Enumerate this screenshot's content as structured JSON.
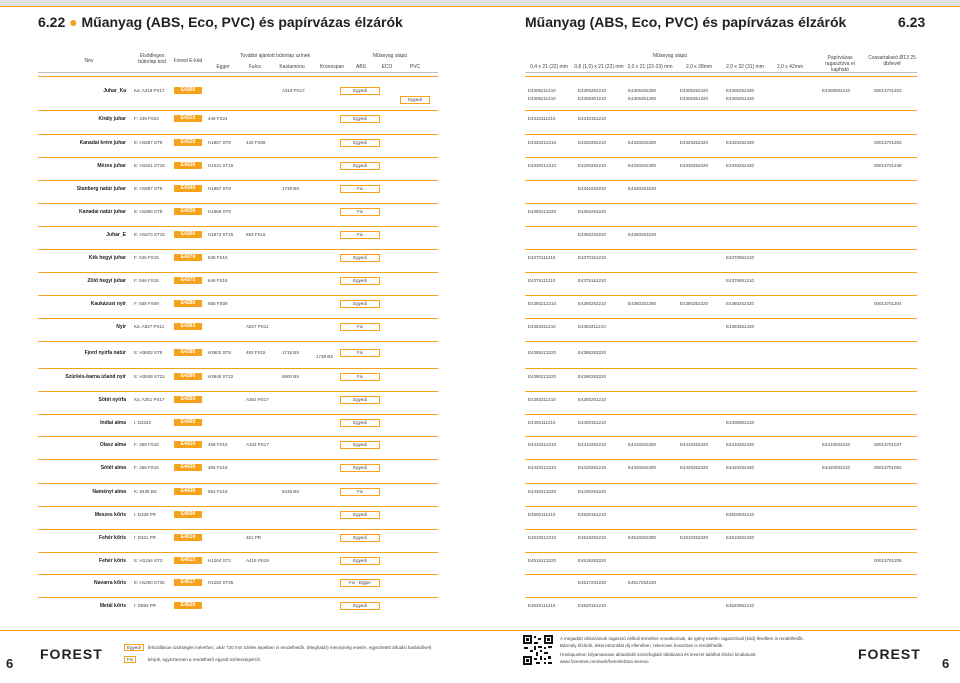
{
  "header": {
    "title_left_num": "6.22",
    "title_left": "Műanyag (ABS, Eco, PVC) és papírvázas élzárók",
    "title_right": "Műanyag (ABS, Eco, PVC) és papírvázas élzárók",
    "title_right_num": "6.23"
  },
  "columns_left": {
    "nev": "Név",
    "elsodleges": "Elsődleges bútorlap kód",
    "forest": "Forest E-kód",
    "tovabbi": "További ajánlott bútorlap színek",
    "egger": "Egger",
    "falco": "Falco",
    "kastamonu": "Kastamonu",
    "kronospan": "Kronospan",
    "muanyag": "Műanyag alapú",
    "abs": "ABS",
    "eco": "ECO",
    "pvc": "PVC"
  },
  "columns_right": {
    "muanyag": "Műanyag alapú",
    "c1": "0,4 x 21 (22) mm",
    "c2": "0,8 (1,0) x 21 (22) mm",
    "c3": "2,0 x 21 (22-23) mm",
    "c4": "2,0 x 28mm",
    "c5": "2,0 x 32 (31) mm",
    "c6": "2,0 x 42mm",
    "papir": "Papírvázas ragasztóva el kapható",
    "csavar": "Csavartakaró Ø13 25 db/levél"
  },
  "rows": [
    {
      "name": "Juhar_Ka",
      "code": "Ka: A319 PS17",
      "e": "E4305",
      "c1": "",
      "c2": "",
      "c3": "A319 PS17",
      "c4": "",
      "typ": "Egyedi",
      "typ2": "Egyedi",
      "n1": "E4305211210",
      "n2": "E4305252210",
      "n3": "E4305252280",
      "n4": "E4305252320",
      "n5": "E4305252420",
      "n1b": "E4305211210",
      "n2b": "E4305301210",
      "n3b": "E4305351280",
      "n4b": "E4305351320",
      "n5b": "E4305351420",
      "pap": "E4305932210",
      "csav": "000137012​02"
    },
    {
      "name": "Király juhar",
      "code": "F: 449 FS24",
      "e": "E4310",
      "c1": "449 FS24",
      "c2": "",
      "c3": "",
      "c4": "",
      "typ": "Egyedi",
      "n1": "E4310111210",
      "n2": "E4310151210",
      "n3": "",
      "n4": "",
      "n5": "",
      "pap": "",
      "csav": ""
    },
    {
      "name": "Kanadai krém juhar",
      "code": "E: H1867 ST9",
      "e": "E4320",
      "c1": "H1867 ST9",
      "c2": "440 FS08",
      "c3": "",
      "c4": "",
      "typ": "Egyedi",
      "n1": "E4320212210",
      "n2": "E4320252210",
      "n3": "E4320252280",
      "n4": "E4320252320",
      "n5": "E4320252420",
      "pap": "",
      "csav": "000137012​03"
    },
    {
      "name": "Mézes juhar",
      "code": "E: H1521 ST15",
      "e": "E4330",
      "c1": "H1521 ST15",
      "c2": "",
      "c3": "",
      "c4": "",
      "typ": "Egyedi",
      "n1": "E4330212210",
      "n2": "E4330252210",
      "n3": "E4330252280",
      "n4": "E4330252320",
      "n5": "E4330252420",
      "pap": "",
      "csav": "000137012​48"
    },
    {
      "name": "Stanberg natúr juhar",
      "code": "E: H1887 ST9",
      "e": "E4340",
      "c1": "H1887 ST9",
      "c2": "",
      "c3": "1738 BS",
      "c4": "",
      "typ": "Fix",
      "n1": "",
      "n2": "E4340233220",
      "n3": "E4340253220",
      "n4": "",
      "n5": "",
      "pap": "",
      "csav": ""
    },
    {
      "name": "Kanadai natúr juhar",
      "code": "E: H1869 ST9",
      "e": "E4350",
      "c1": "H1869 ST9",
      "c2": "",
      "c3": "",
      "c4": "",
      "typ": "Fix",
      "n1": "E4350213220",
      "n2": "E4350253220",
      "n3": "",
      "n4": "",
      "n5": "",
      "pap": "",
      "csav": ""
    },
    {
      "name": "Juhar_E",
      "code": "E: H1873 ST15",
      "e": "E4360",
      "c1": "H1873 ST15",
      "c2": "553 FS15",
      "c3": "",
      "c4": "",
      "typ": "Fix",
      "n1": "",
      "n2": "E4360233220",
      "n3": "E4360253220",
      "n4": "",
      "n5": "",
      "pap": "",
      "csav": ""
    },
    {
      "name": "Kék hegyi juhar",
      "code": "F: 645 FS15",
      "e": "E4370",
      "c1": "645 FS15",
      "c2": "",
      "c3": "",
      "c4": "",
      "typ": "Egyedi",
      "n1": "E4370111210",
      "n2": "E4370151210",
      "n3": "",
      "n4": "",
      "n5": "E4370951210",
      "pap": "",
      "csav": ""
    },
    {
      "name": "Zöld hegyi juhar",
      "code": "F: 646 FS15",
      "e": "E4375",
      "c1": "646 FS15",
      "c2": "",
      "c3": "",
      "c4": "",
      "typ": "Egyedi",
      "n1": "E4375111210",
      "n2": "E4375151210",
      "n3": "",
      "n4": "",
      "n5": "E4375951210",
      "pap": "",
      "csav": ""
    },
    {
      "name": "Kaukázusi nyír",
      "code": "F: 658 FS09",
      "e": "E4380",
      "c1": "658 FS09",
      "c2": "",
      "c3": "",
      "c4": "",
      "typ": "Egyedi",
      "n1": "E4380212210",
      "n2": "E4380252210",
      "n3": "E4380252280",
      "n4": "E4380252320",
      "n5": "E4380252420",
      "pap": "",
      "csav": "000137012​04"
    },
    {
      "name": "Nyír",
      "code": "Ka: A827 PS11",
      "e": "E4383",
      "c1": "",
      "c2": "A827 PS11",
      "c3": "",
      "c4": "",
      "typ": "Fix",
      "n1": "E4383311210",
      "n2": "E4383311210",
      "n3": "",
      "n4": "",
      "n5": "E4383351420",
      "pap": "",
      "csav": ""
    },
    {
      "name": "Fjord nyírfa natúr",
      "code": "E: H3602 ST9",
      "e": "E4385",
      "c1": "H3602 ST9",
      "c2": "483 FS15",
      "c3": "1715 BS",
      "c3b": "1738 BS",
      "c4": "",
      "typ": "Fix",
      "n1": "E4385213220",
      "n2": "E4385253220",
      "n3": "",
      "n4": "",
      "n5": "",
      "pap": "",
      "csav": ""
    },
    {
      "name": "Szürkés-barna izland nyír",
      "code": "E: H3848 ST22",
      "e": "E4390",
      "c1": "H3848 ST22",
      "c2": "",
      "c3": "8500 BS",
      "c4": "",
      "typ": "Fix",
      "n1": "E4390213220",
      "n2": "E4390253220",
      "n3": "",
      "n4": "",
      "n5": "",
      "pap": "",
      "csav": ""
    },
    {
      "name": "Sötét nyírfa",
      "code": "Ka: A351 PS17",
      "e": "E4393",
      "c1": "",
      "c2": "A351 PS17",
      "c3": "",
      "c4": "",
      "typ": "Egyedi",
      "n1": "E4393311210",
      "n2": "E4393201210",
      "n3": "",
      "n4": "",
      "n5": "",
      "pap": "",
      "csav": ""
    },
    {
      "name": "Indiai alma",
      "code": "I: D2342",
      "e": "E4400",
      "c1": "",
      "c2": "",
      "c3": "",
      "c4": "",
      "typ": "Egyedi",
      "n1": "E4400111210",
      "n2": "E4400151210",
      "n3": "",
      "n4": "",
      "n5": "E4400951210",
      "pap": "",
      "csav": ""
    },
    {
      "name": "Olasz alma",
      "code": "F: 468 FS15",
      "e": "E4410",
      "c1": "468 FS15",
      "c2": "A332 PS17",
      "c3": "",
      "c4": "",
      "typ": "Egyedi",
      "n1": "E4410212210",
      "n2": "E4410252210",
      "n3": "E4410252280",
      "n4": "E4410252320",
      "n5": "E4410252420",
      "pap": "E4410932210",
      "csav": "000137010​37"
    },
    {
      "name": "Sötét alma",
      "code": "F: 466 FS15",
      "e": "E4420",
      "c1": "466 FS15",
      "c2": "",
      "c3": "",
      "c4": "",
      "typ": "Egyedi",
      "n1": "E4420212210",
      "n2": "E4420252210",
      "n3": "E4420252280",
      "n4": "E4420252320",
      "n5": "E4420252420",
      "pap": "E4420932210",
      "csav": "000137010​52"
    },
    {
      "name": "Naményi alma",
      "code": "K: 8438 BS",
      "e": "E4430",
      "c1": "552 FS15",
      "c2": "",
      "c3": "8438 BS",
      "c4": "",
      "typ": "Fix",
      "n1": "E4430213220",
      "n2": "E4430253220",
      "n3": "",
      "n4": "",
      "n5": "",
      "pap": "",
      "csav": ""
    },
    {
      "name": "Meszes kőris",
      "code": "I: D339 PR",
      "e": "E4500",
      "c1": "",
      "c2": "",
      "c3": "",
      "c4": "",
      "typ": "Egyedi",
      "n1": "E4500111210",
      "n2": "E4500151210",
      "n3": "",
      "n4": "",
      "n5": "E4500932210",
      "pap": "",
      "csav": ""
    },
    {
      "name": "Fehér kőris",
      "code": "I: D321 PR",
      "e": "E4510",
      "c1": "",
      "c2": "321 PR",
      "c3": "",
      "c4": "",
      "typ": "Egyedi",
      "n1": "E4510212210",
      "n2": "E4510252210",
      "n3": "E4510252280",
      "n4": "E4510252320",
      "n5": "E4510252420",
      "pap": "",
      "csav": ""
    },
    {
      "name": "Fehér kőris",
      "code": "E: H1264 ST3",
      "e": "E4515",
      "c1": "H1264 ST3",
      "c2": "A415 PS19",
      "c3": "",
      "c4": "",
      "typ": "Egyedi",
      "n1": "E4515213220",
      "n2": "E4515253220",
      "n3": "",
      "n4": "",
      "n5": "",
      "pap": "",
      "csav": "000137012​05"
    },
    {
      "name": "Navarra kőris",
      "code": "E: H1250 ST36",
      "e": "E4517",
      "c1": "H1250 ST36",
      "c2": "",
      "c3": "",
      "c4": "",
      "typ": "Fix - Egger",
      "n1": "",
      "n2": "E4517234230",
      "n3": "E4517254230",
      "n4": "",
      "n5": "",
      "pap": "",
      "csav": ""
    },
    {
      "name": "Metál kőris",
      "code": "I: D894 PR",
      "e": "E4520",
      "c1": "",
      "c2": "",
      "c3": "",
      "c4": "",
      "typ": "Egyedi",
      "n1": "E4520111210",
      "n2": "E4520151210",
      "n3": "",
      "n4": "",
      "n5": "E4520951210",
      "pap": "",
      "csav": ""
    }
  ],
  "footer": {
    "logo": "FOREST",
    "legend1_label": "Egyedi",
    "legend1_text": "felszállásos szükséglet mérethez, akár 720 mm széles lepelben is rendelhetők. (Meghatár) mennyiség esetén, egyeztetett átfutási határidővel)",
    "legend2_label": "Fix",
    "legend2_text": "kérjük, egyeztessen a rendelhető egyedi szélességekről.",
    "note1": "A megadott cikkszámok ragasztó nélküli termékre vonatkoznak, de igény esetén ragasztóval (kód) lévelben is rendelhetők.",
    "note2": "Bármely élzárók, tekercsbontást díj ellenében, tekercses hosszban is rendelhetők.",
    "note3": "Honlapunkon folyamatosan aktualizált összefoglaló táblázatot és levezet találhat élzáró kínálatunk:",
    "url": "www.forestnet.com/web/forest/elzaro-kereso",
    "page_left": "6",
    "page_right": "6"
  }
}
